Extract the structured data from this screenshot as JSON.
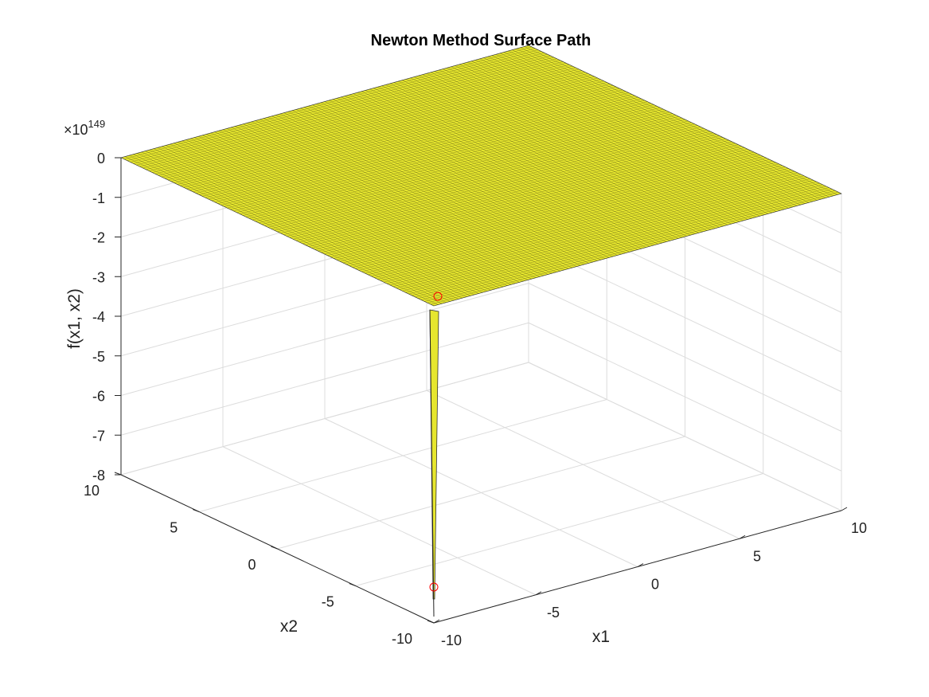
{
  "chart_data": {
    "type": "surface",
    "title": "Newton Method Surface Path",
    "xlabel": "x1",
    "ylabel": "x2",
    "zlabel": "f(x1, x2)",
    "z_exponent_base": "×10",
    "z_exponent_power": "149",
    "xlim": [
      -10,
      10
    ],
    "ylim": [
      -10,
      10
    ],
    "zlim": [
      -8,
      0
    ],
    "x_ticks": [
      "-10",
      "-5",
      "0",
      "5",
      "10"
    ],
    "y_ticks": [
      "-10",
      "-5",
      "0",
      "5",
      "10"
    ],
    "z_ticks": [
      "0",
      "-1",
      "-2",
      "-3",
      "-4",
      "-5",
      "-6",
      "-7",
      "-8"
    ],
    "surface_color": "#e6e62e",
    "mesh_color": "#000000",
    "spike": {
      "x1": -10,
      "x2": -10,
      "z_top": 0,
      "z_bottom": -8
    },
    "path_points": [
      {
        "x1": -10,
        "x2": -10,
        "z": 0
      },
      {
        "x1": -10,
        "x2": -10,
        "z": -8
      }
    ],
    "path_marker": "circle",
    "path_color": "#ff0000",
    "grid": true
  }
}
